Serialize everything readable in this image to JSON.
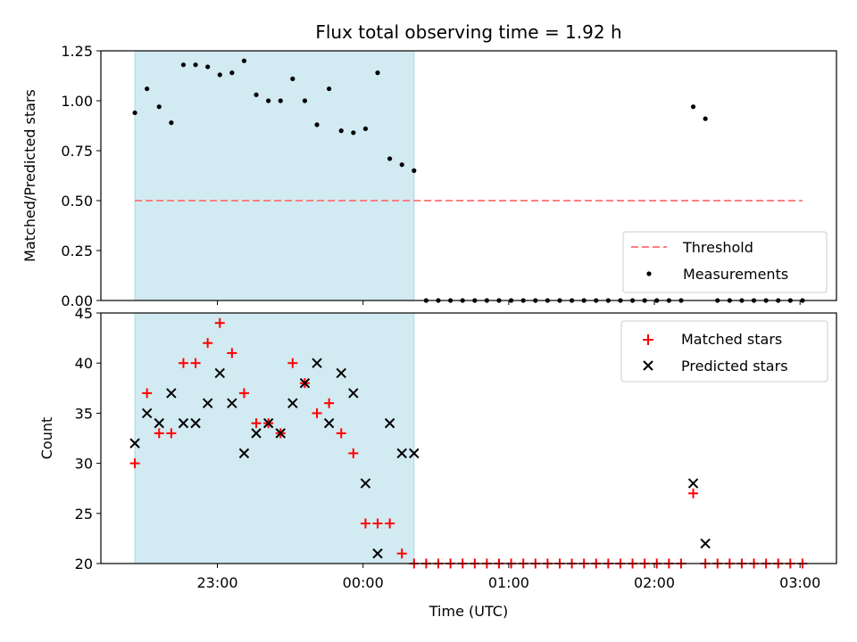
{
  "chart_data": [
    {
      "type": "scatter",
      "title": "Flux total observing time = 1.92 h",
      "xlabel": "",
      "ylabel": "Matched/Predicted stars",
      "ylim": [
        0,
        1.25
      ],
      "yticks": [
        "0.00",
        "0.25",
        "0.50",
        "0.75",
        "1.00",
        "1.25"
      ],
      "threshold": 0.5,
      "observing_window": [
        "22:26",
        "00:21"
      ],
      "colors": {
        "threshold": "#ff7f7f",
        "measurements": "#000000",
        "window": "#add8e6"
      },
      "legend": {
        "position": "lower-right",
        "entries": [
          "Threshold",
          "Measurements"
        ]
      },
      "series": [
        {
          "name": "Measurements",
          "x": [
            "22:26",
            "22:31",
            "22:36",
            "22:41",
            "22:46",
            "22:51",
            "22:56",
            "23:01",
            "23:06",
            "23:11",
            "23:16",
            "23:21",
            "23:26",
            "23:31",
            "23:36",
            "23:41",
            "23:46",
            "23:51",
            "23:56",
            "00:01",
            "00:06",
            "00:11",
            "00:16",
            "00:21",
            "00:26",
            "00:31",
            "00:36",
            "00:41",
            "00:46",
            "00:51",
            "00:56",
            "01:01",
            "01:06",
            "01:11",
            "01:16",
            "01:21",
            "01:26",
            "01:31",
            "01:36",
            "01:41",
            "01:46",
            "01:51",
            "01:56",
            "02:01",
            "02:06",
            "02:11",
            "02:16",
            "02:21",
            "02:26",
            "02:31",
            "02:36",
            "02:41",
            "02:46",
            "02:51",
            "02:56",
            "03:01"
          ],
          "y": [
            0.94,
            1.06,
            0.97,
            0.89,
            1.18,
            1.18,
            1.17,
            1.13,
            1.14,
            1.2,
            1.03,
            1.0,
            1.0,
            1.11,
            1.0,
            0.88,
            1.06,
            0.85,
            0.84,
            0.86,
            1.14,
            0.71,
            0.68,
            0.65,
            0,
            0,
            0,
            0,
            0,
            0,
            0,
            0,
            0,
            0,
            0,
            0,
            0,
            0,
            0,
            0,
            0,
            0,
            0,
            0,
            0,
            0,
            0.97,
            0.91,
            0,
            0,
            0,
            0,
            0,
            0,
            0,
            0
          ]
        }
      ]
    },
    {
      "type": "scatter",
      "title": "",
      "xlabel": "Time (UTC)",
      "ylabel": "Count",
      "ylim": [
        20,
        45
      ],
      "yticks": [
        "20",
        "25",
        "30",
        "35",
        "40",
        "45"
      ],
      "xticks": [
        "23:00",
        "00:00",
        "01:00",
        "02:00",
        "03:00"
      ],
      "colors": {
        "matched": "#ff0000",
        "predicted": "#000000",
        "window": "#add8e6"
      },
      "legend": {
        "position": "upper-right",
        "entries": [
          "Matched stars",
          "Predicted stars"
        ]
      },
      "series": [
        {
          "name": "Matched stars",
          "marker": "+",
          "x": [
            "22:26",
            "22:31",
            "22:36",
            "22:41",
            "22:46",
            "22:51",
            "22:56",
            "23:01",
            "23:06",
            "23:11",
            "23:16",
            "23:21",
            "23:26",
            "23:31",
            "23:36",
            "23:41",
            "23:46",
            "23:51",
            "23:56",
            "00:01",
            "00:06",
            "00:11",
            "00:16",
            "00:21",
            "00:26",
            "00:31",
            "00:36",
            "00:41",
            "00:46",
            "00:51",
            "00:56",
            "01:01",
            "01:06",
            "01:11",
            "01:16",
            "01:21",
            "01:26",
            "01:31",
            "01:36",
            "01:41",
            "01:46",
            "01:51",
            "01:56",
            "02:01",
            "02:06",
            "02:11",
            "02:16",
            "02:21",
            "02:26",
            "02:31",
            "02:36",
            "02:41",
            "02:46",
            "02:51",
            "02:56",
            "03:01"
          ],
          "y": [
            30,
            37,
            33,
            33,
            40,
            40,
            42,
            44,
            41,
            37,
            34,
            34,
            33,
            40,
            38,
            35,
            36,
            33,
            31,
            24,
            24,
            24,
            21,
            20,
            20,
            20,
            20,
            20,
            20,
            20,
            20,
            20,
            20,
            20,
            20,
            20,
            20,
            20,
            20,
            20,
            20,
            20,
            20,
            20,
            20,
            20,
            27,
            20,
            20,
            20,
            20,
            20,
            20,
            20,
            20,
            20
          ]
        },
        {
          "name": "Predicted stars",
          "marker": "x",
          "x": [
            "22:26",
            "22:31",
            "22:36",
            "22:41",
            "22:46",
            "22:51",
            "22:56",
            "23:01",
            "23:06",
            "23:11",
            "23:16",
            "23:21",
            "23:26",
            "23:31",
            "23:36",
            "23:41",
            "23:46",
            "23:51",
            "23:56",
            "00:01",
            "00:06",
            "00:11",
            "00:16",
            "00:21",
            "02:16",
            "02:21"
          ],
          "y": [
            32,
            35,
            34,
            37,
            34,
            34,
            36,
            39,
            36,
            31,
            33,
            34,
            33,
            36,
            38,
            40,
            34,
            39,
            37,
            28,
            21,
            34,
            31,
            31,
            28,
            22
          ]
        }
      ]
    }
  ]
}
